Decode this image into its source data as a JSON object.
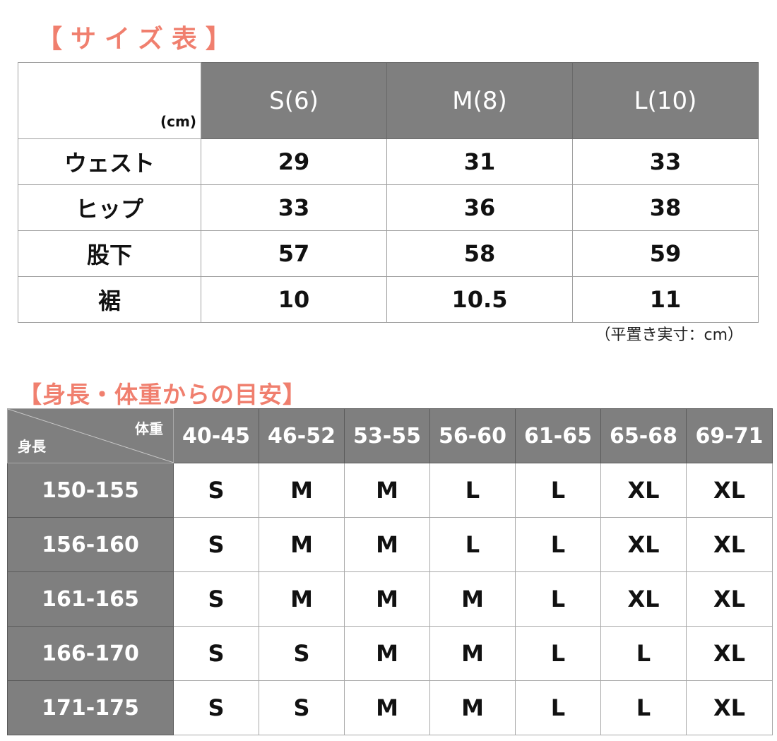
{
  "size_chart": {
    "title": "【サイズ表】",
    "unit_label": "(cm)",
    "columns": [
      "S(6)",
      "M(8)",
      "L(10)"
    ],
    "rows": [
      {
        "label": "ウェスト",
        "values": [
          "29",
          "31",
          "33"
        ]
      },
      {
        "label": "ヒップ",
        "values": [
          "33",
          "36",
          "38"
        ]
      },
      {
        "label": "股下",
        "values": [
          "57",
          "58",
          "59"
        ]
      },
      {
        "label": "裾",
        "values": [
          "10",
          "10.5",
          "11"
        ]
      }
    ],
    "note": "（平置き実寸：cm）"
  },
  "guide_chart": {
    "title": "【身長・体重からの目安】",
    "corner_weight": "体重",
    "corner_height": "身長",
    "columns": [
      "40-45",
      "46-52",
      "53-55",
      "56-60",
      "61-65",
      "65-68",
      "69-71"
    ],
    "rows": [
      {
        "label": "150-155",
        "values": [
          "S",
          "M",
          "M",
          "L",
          "L",
          "XL",
          "XL"
        ]
      },
      {
        "label": "156-160",
        "values": [
          "S",
          "M",
          "M",
          "L",
          "L",
          "XL",
          "XL"
        ]
      },
      {
        "label": "161-165",
        "values": [
          "S",
          "M",
          "M",
          "M",
          "L",
          "XL",
          "XL"
        ]
      },
      {
        "label": "166-170",
        "values": [
          "S",
          "S",
          "M",
          "M",
          "L",
          "L",
          "XL"
        ]
      },
      {
        "label": "171-175",
        "values": [
          "S",
          "S",
          "M",
          "M",
          "L",
          "L",
          "XL"
        ]
      }
    ]
  },
  "colors": {
    "title": "#f07f6e",
    "header": "#7f7f7f"
  }
}
